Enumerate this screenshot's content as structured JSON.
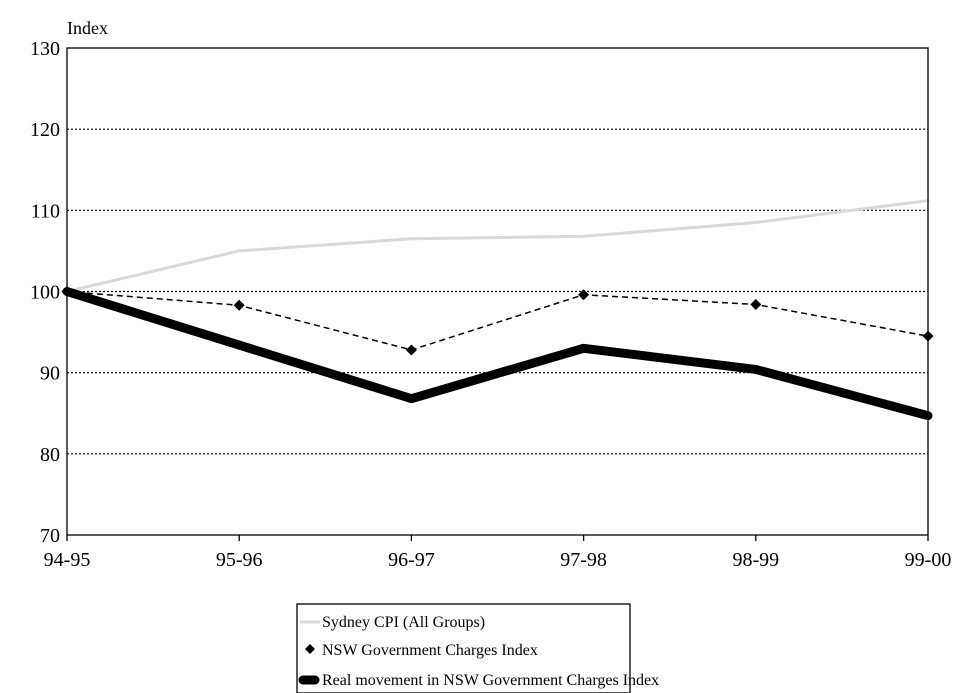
{
  "chart_data": {
    "type": "line",
    "title": "",
    "xlabel": "",
    "ylabel": "Index",
    "categories": [
      "94-95",
      "95-96",
      "96-97",
      "97-98",
      "98-99",
      "99-00"
    ],
    "ylim": [
      70,
      130
    ],
    "yticks": [
      70,
      80,
      90,
      100,
      110,
      120,
      130
    ],
    "grid": "horizontal dotted",
    "legend_position": "bottom-center",
    "series": [
      {
        "name": "Sydney CPI (All Groups)",
        "values": [
          100,
          105,
          106.5,
          106.8,
          108.5,
          111.2
        ],
        "color": "#d9d9d9",
        "style": "solid-thin-light",
        "marker": "none"
      },
      {
        "name": "NSW Government Charges Index",
        "values": [
          100,
          98.3,
          92.8,
          99.6,
          98.4,
          94.5
        ],
        "color": "#000000",
        "style": "dashed",
        "marker": "diamond"
      },
      {
        "name": "Real movement in NSW Government Charges Index",
        "values": [
          100,
          93.4,
          86.8,
          93.0,
          90.4,
          84.7
        ],
        "color": "#000000",
        "style": "solid-thick",
        "marker": "none"
      }
    ]
  }
}
